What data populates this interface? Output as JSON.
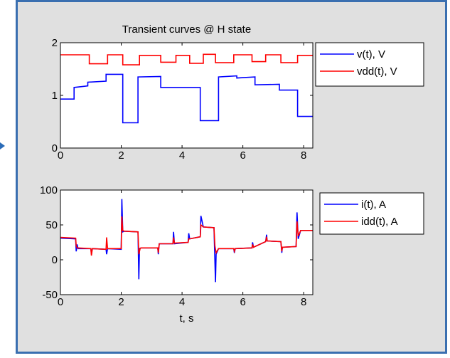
{
  "chart_data": [
    {
      "type": "line",
      "title": "Transient curves @ H state",
      "xlabel": "",
      "ylabel": "",
      "xlim": [
        0,
        8.3
      ],
      "ylim": [
        0,
        2
      ],
      "xticks": [
        0,
        2,
        4,
        6,
        8
      ],
      "yticks": [
        0,
        1,
        2
      ],
      "legend_position": "top-right-outside",
      "series": [
        {
          "name": "v(t),  V",
          "color": "#0000ff",
          "x": [
            0,
            0.45,
            0.45,
            0.9,
            0.9,
            1.5,
            1.5,
            2.05,
            2.05,
            2.55,
            2.55,
            3.3,
            3.3,
            4.6,
            4.6,
            5.2,
            5.2,
            5.8,
            5.8,
            6.4,
            6.4,
            7.2,
            7.2,
            7.8,
            7.8,
            8.3
          ],
          "y": [
            0.93,
            0.93,
            1.15,
            1.18,
            1.25,
            1.27,
            1.4,
            1.4,
            0.48,
            0.48,
            1.35,
            1.36,
            1.15,
            1.15,
            0.52,
            0.52,
            1.35,
            1.37,
            1.33,
            1.35,
            1.2,
            1.21,
            1.1,
            1.1,
            0.6,
            0.6
          ]
        },
        {
          "name": "vdd(t),  V",
          "color": "#ff0000",
          "x": [
            0,
            0.95,
            0.95,
            1.55,
            1.55,
            2.05,
            2.05,
            2.6,
            2.6,
            3.3,
            3.3,
            3.8,
            3.8,
            4.25,
            4.25,
            4.7,
            4.7,
            5.1,
            5.1,
            5.7,
            5.7,
            6.3,
            6.3,
            6.75,
            6.75,
            7.25,
            7.25,
            7.8,
            7.8,
            8.3
          ],
          "y": [
            1.77,
            1.77,
            1.6,
            1.6,
            1.77,
            1.77,
            1.58,
            1.58,
            1.76,
            1.76,
            1.63,
            1.63,
            1.76,
            1.76,
            1.61,
            1.61,
            1.78,
            1.78,
            1.62,
            1.62,
            1.77,
            1.77,
            1.64,
            1.64,
            1.77,
            1.77,
            1.62,
            1.62,
            1.76,
            1.76
          ]
        }
      ]
    },
    {
      "type": "line",
      "title": "",
      "xlabel": "t,  s",
      "ylabel": "",
      "xlim": [
        0,
        8.3
      ],
      "ylim": [
        -50,
        100
      ],
      "xticks": [
        0,
        2,
        4,
        6,
        8
      ],
      "yticks": [
        -50,
        0,
        50,
        100
      ],
      "legend_position": "top-right-outside",
      "series": [
        {
          "name": "i(t),   A",
          "color": "#0000ff",
          "x": [
            0,
            0.5,
            0.52,
            0.55,
            0.58,
            1.0,
            1.02,
            1.05,
            1.5,
            1.52,
            1.55,
            2.0,
            2.02,
            2.05,
            2.1,
            2.55,
            2.58,
            2.6,
            2.65,
            3.2,
            3.22,
            3.25,
            3.7,
            3.72,
            3.75,
            4.2,
            4.22,
            4.25,
            4.6,
            4.62,
            4.7,
            5.05,
            5.1,
            5.12,
            5.2,
            5.7,
            5.72,
            5.75,
            6.3,
            6.32,
            6.35,
            6.75,
            6.78,
            6.8,
            7.25,
            7.28,
            7.3,
            7.75,
            7.78,
            7.82,
            7.9,
            8.3
          ],
          "y": [
            31,
            30,
            12,
            22,
            16,
            16,
            8,
            16,
            15,
            8,
            16,
            15,
            87,
            40,
            41,
            40,
            -28,
            16,
            17,
            17,
            8,
            23,
            23,
            40,
            23,
            25,
            38,
            30,
            33,
            63,
            47,
            46,
            -32,
            8,
            16,
            16,
            10,
            16,
            17,
            25,
            18,
            26,
            36,
            27,
            26,
            10,
            18,
            19,
            68,
            30,
            42,
            42
          ]
        },
        {
          "name": "idd(t),   A",
          "color": "#ff0000",
          "x": [
            0,
            0.5,
            0.52,
            0.55,
            1.0,
            1.02,
            1.05,
            1.5,
            1.52,
            1.55,
            2.0,
            2.02,
            2.05,
            2.1,
            2.55,
            2.58,
            2.62,
            2.65,
            3.2,
            3.22,
            3.25,
            3.7,
            3.72,
            3.75,
            4.2,
            4.22,
            4.25,
            4.6,
            4.62,
            4.7,
            5.05,
            5.08,
            5.12,
            5.2,
            5.7,
            5.72,
            5.75,
            6.3,
            6.32,
            6.35,
            6.75,
            6.78,
            6.8,
            7.25,
            7.28,
            7.3,
            7.75,
            7.78,
            7.82,
            7.9,
            8.3
          ],
          "y": [
            32,
            31,
            20,
            17,
            16,
            6,
            16,
            15,
            32,
            16,
            16,
            62,
            42,
            41,
            40,
            8,
            16,
            17,
            17,
            10,
            23,
            23,
            32,
            24,
            25,
            30,
            30,
            33,
            50,
            47,
            46,
            20,
            10,
            16,
            16,
            12,
            16,
            17,
            22,
            18,
            26,
            33,
            27,
            26,
            12,
            18,
            19,
            55,
            34,
            42,
            42
          ]
        }
      ]
    }
  ]
}
